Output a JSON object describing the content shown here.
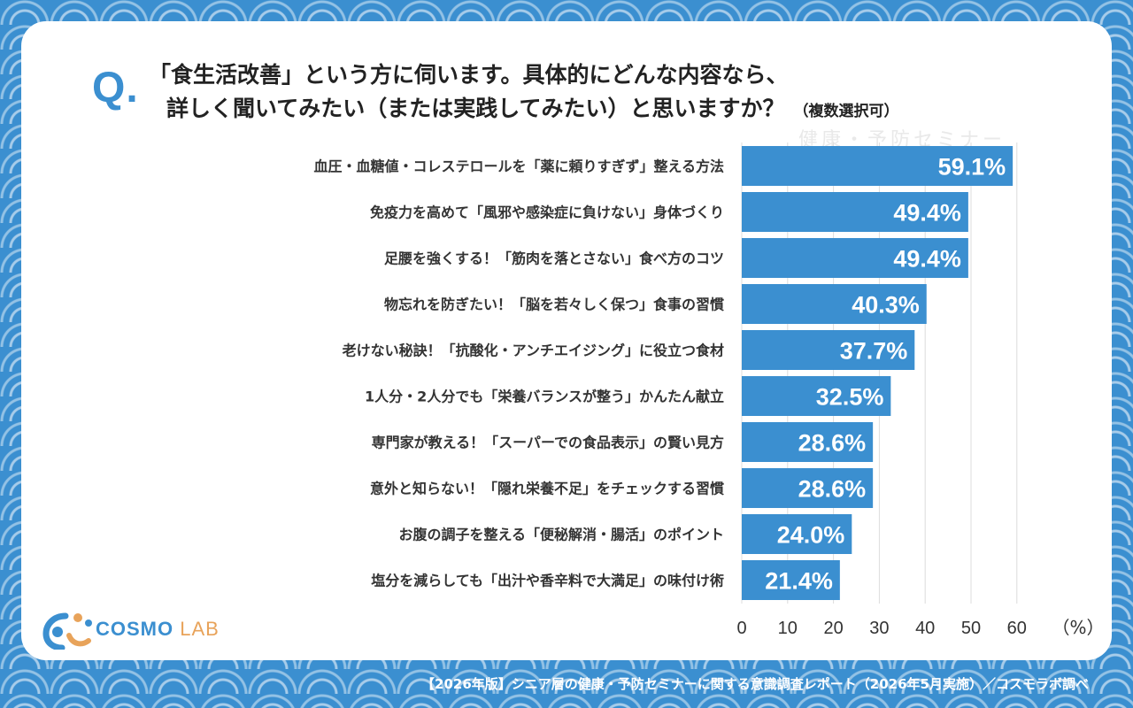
{
  "header": {
    "q_mark": "Q.",
    "title_line1": "「食生活改善」という方に伺います。具体的にどんな内容なら、",
    "title_line2": "詳しく聞いてみたい（または実践してみたい）と思いますか？",
    "title_note": "（複数選択可）"
  },
  "watermark": "健康・予防セミナー",
  "chart_data": {
    "type": "bar",
    "orientation": "horizontal",
    "categories": [
      "血圧・血糖値・コレステロールを「薬に頼りすぎず」整える方法",
      "免疫力を高めて「風邪や感染症に負けない」身体づくり",
      "足腰を強くする！「筋肉を落とさない」食べ方のコツ",
      "物忘れを防ぎたい！「脳を若々しく保つ」食事の習慣",
      "老けない秘訣！「抗酸化・アンチエイジング」に役立つ食材",
      "1人分・2人分でも「栄養バランスが整う」かんたん献立",
      "専門家が教える！「スーパーでの食品表示」の賢い見方",
      "意外と知らない！「隠れ栄養不足」をチェックする習慣",
      "お腹の調子を整える「便秘解消・腸活」のポイント",
      "塩分を減らしても「出汁や香辛料で大満足」の味付け術"
    ],
    "values": [
      59.1,
      49.4,
      49.4,
      40.3,
      37.7,
      32.5,
      28.6,
      28.6,
      24.0,
      21.4
    ],
    "value_labels": [
      "59.1%",
      "49.4%",
      "49.4%",
      "40.3%",
      "37.7%",
      "32.5%",
      "28.6%",
      "28.6%",
      "24.0%",
      "21.4%"
    ],
    "xticks": [
      "0",
      "10",
      "20",
      "30",
      "40",
      "50",
      "60"
    ],
    "xlim": [
      0,
      70
    ],
    "unit_label": "（%）",
    "grid": true,
    "bar_color": "#3b8fd0"
  },
  "logo": {
    "brand": "COSMO",
    "suffix": "LAB"
  },
  "footer": "【2026年版】シニア層の健康・予防セミナーに関する意識調査レポート（2026年5月実施）／コスモラボ調べ",
  "colors": {
    "accent": "#3b8fd0",
    "logo_orange": "#e8a35a"
  }
}
